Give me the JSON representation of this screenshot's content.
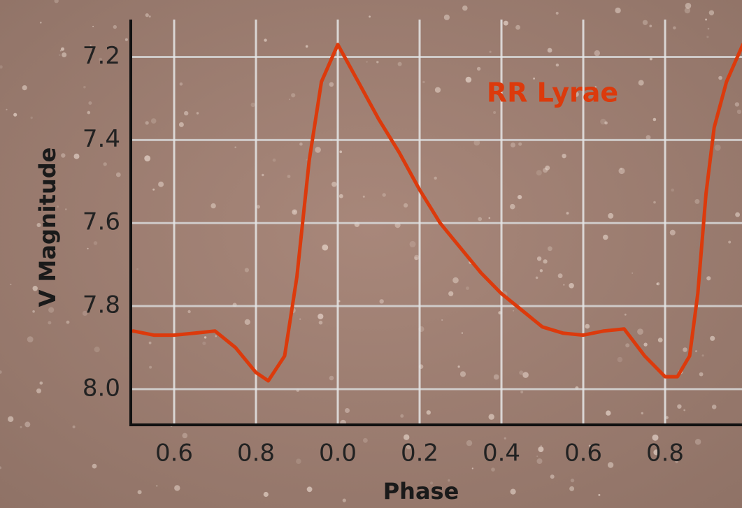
{
  "chart_data": {
    "type": "line",
    "annotation": "RR Lyrae",
    "x_label": "Phase",
    "y_label": "V Magnitude",
    "x": [
      -0.5,
      -0.45,
      -0.4,
      -0.35,
      -0.3,
      -0.25,
      -0.2,
      -0.17,
      -0.13,
      -0.1,
      -0.07,
      -0.04,
      0.0,
      0.05,
      0.1,
      0.15,
      0.2,
      0.25,
      0.3,
      0.35,
      0.4,
      0.45,
      0.5,
      0.55,
      0.6,
      0.65,
      0.7,
      0.75,
      0.8,
      0.83,
      0.86,
      0.88,
      0.9,
      0.92,
      0.95,
      0.99
    ],
    "series": [
      {
        "name": "RR Lyrae",
        "color": "#dc3a0c",
        "values": [
          7.86,
          7.87,
          7.87,
          7.865,
          7.86,
          7.9,
          7.96,
          7.98,
          7.92,
          7.73,
          7.45,
          7.26,
          7.17,
          7.26,
          7.35,
          7.43,
          7.52,
          7.6,
          7.66,
          7.72,
          7.77,
          7.81,
          7.85,
          7.865,
          7.87,
          7.86,
          7.855,
          7.92,
          7.97,
          7.97,
          7.92,
          7.77,
          7.53,
          7.37,
          7.26,
          7.17
        ]
      }
    ],
    "xlim": [
      -0.506,
      0.988
    ],
    "ylim": [
      8.086,
      7.11
    ],
    "xticks": [
      {
        "value": -0.4,
        "label": "0.6"
      },
      {
        "value": -0.2,
        "label": "0.8"
      },
      {
        "value": 0,
        "label": "0.0"
      },
      0.2,
      0.4,
      0.6,
      0.8
    ],
    "yticks": [
      7.2,
      7.4,
      7.6,
      7.8,
      {
        "value": 8,
        "label": "8.0"
      }
    ],
    "grid": true
  }
}
